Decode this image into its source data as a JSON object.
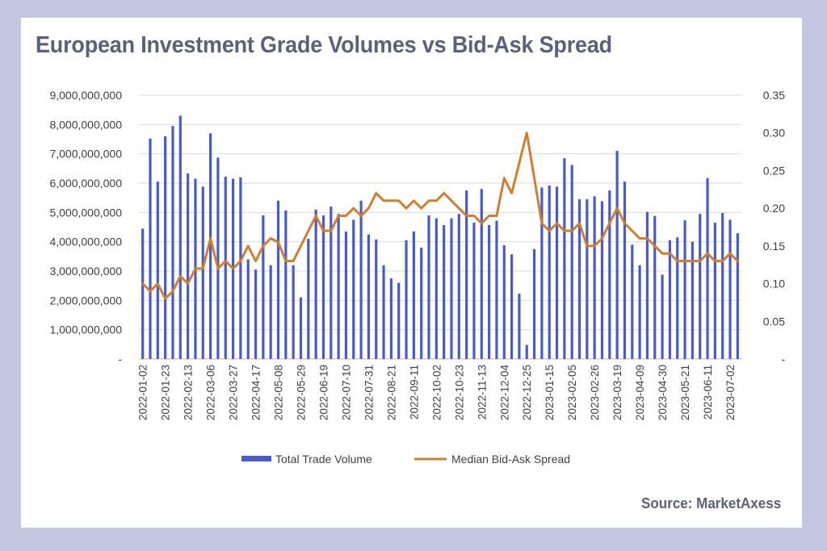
{
  "title": "European Investment Grade Volumes vs Bid-Ask Spread",
  "source": "Source: MarketAxess",
  "chart_data": {
    "type": "bar",
    "x_tick_labels": [
      "2022-01-02",
      "2022-01-23",
      "2022-02-13",
      "2022-03-06",
      "2022-03-27",
      "2022-04-17",
      "2022-05-08",
      "2022-05-29",
      "2022-06-19",
      "2022-07-10",
      "2022-07-31",
      "2022-08-21",
      "2022-09-11",
      "2022-10-02",
      "2022-10-23",
      "2022-11-13",
      "2022-12-04",
      "2022-12-25",
      "2023-01-15",
      "2023-02-05",
      "2023-02-26",
      "2023-03-19",
      "2023-04-09",
      "2023-04-30",
      "2023-05-21",
      "2023-06-11",
      "2023-07-02"
    ],
    "series": [
      {
        "name": "Total Trade Volume",
        "type": "bar",
        "axis": "left",
        "color": "#4a5bc8",
        "values": [
          4450000000,
          7520000000,
          6050000000,
          7600000000,
          7950000000,
          8300000000,
          6330000000,
          6150000000,
          5880000000,
          7700000000,
          6870000000,
          6220000000,
          6150000000,
          6200000000,
          3400000000,
          3050000000,
          4900000000,
          3200000000,
          5400000000,
          5070000000,
          3200000000,
          2100000000,
          4100000000,
          5100000000,
          4900000000,
          5200000000,
          4950000000,
          4350000000,
          4750000000,
          5400000000,
          4250000000,
          4080000000,
          3200000000,
          2750000000,
          2600000000,
          4050000000,
          4350000000,
          3800000000,
          4900000000,
          4800000000,
          4570000000,
          4800000000,
          4950000000,
          5750000000,
          4650000000,
          5800000000,
          4570000000,
          4720000000,
          3880000000,
          3570000000,
          2230000000,
          480000000,
          3750000000,
          5850000000,
          5920000000,
          5880000000,
          6850000000,
          6620000000,
          5450000000,
          5450000000,
          5550000000,
          5380000000,
          5750000000,
          7100000000,
          6050000000,
          3900000000,
          3200000000,
          5020000000,
          4880000000,
          2880000000,
          4050000000,
          4150000000,
          4730000000,
          4000000000,
          4950000000,
          6170000000,
          4650000000,
          4980000000,
          4750000000,
          4290000000
        ],
        "note": ""
      },
      {
        "name": "Median Bid-Ask Spread",
        "type": "line",
        "axis": "right",
        "color": "#cd7f32",
        "values": [
          0.1,
          0.09,
          0.1,
          0.08,
          0.09,
          0.11,
          0.1,
          0.12,
          0.12,
          0.16,
          0.12,
          0.13,
          0.12,
          0.13,
          0.15,
          0.13,
          0.15,
          0.16,
          0.155,
          0.13,
          0.13,
          0.15,
          0.17,
          0.19,
          0.17,
          0.17,
          0.19,
          0.19,
          0.2,
          0.19,
          0.2,
          0.22,
          0.21,
          0.21,
          0.21,
          0.2,
          0.21,
          0.2,
          0.21,
          0.21,
          0.22,
          0.21,
          0.2,
          0.19,
          0.19,
          0.18,
          0.19,
          0.19,
          0.24,
          0.22,
          0.26,
          0.3,
          0.24,
          0.18,
          0.17,
          0.18,
          0.17,
          0.17,
          0.18,
          0.15,
          0.15,
          0.16,
          0.18,
          0.2,
          0.18,
          0.17,
          0.16,
          0.16,
          0.15,
          0.14,
          0.14,
          0.13,
          0.13,
          0.13,
          0.13,
          0.14,
          0.13,
          0.13,
          0.14,
          0.13
        ]
      }
    ],
    "y_left": {
      "min": 0,
      "max": 9000000000,
      "ticks": [
        "-",
        "1,000,000,000",
        "2,000,000,000",
        "3,000,000,000",
        "4,000,000,000",
        "5,000,000,000",
        "6,000,000,000",
        "7,000,000,000",
        "8,000,000,000",
        "9,000,000,000"
      ]
    },
    "y_right": {
      "min": 0,
      "max": 0.35,
      "ticks": [
        "-",
        "0.05",
        "0.10",
        "0.15",
        "0.20",
        "0.25",
        "0.30",
        "0.35"
      ]
    },
    "grid": true,
    "legend_position": "bottom"
  }
}
